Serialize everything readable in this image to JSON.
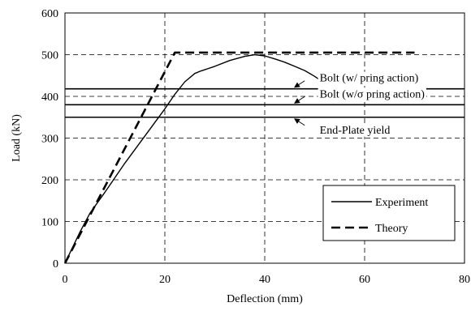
{
  "chart_data": {
    "type": "line",
    "title": "",
    "xlabel": "Deflection (mm)",
    "ylabel": "Load (kN)",
    "xlim": [
      0,
      80
    ],
    "ylim": [
      0,
      600
    ],
    "xticks": [
      "0",
      "20",
      "40",
      "60",
      "80"
    ],
    "yticks": [
      "0",
      "100",
      "200",
      "300",
      "400",
      "500",
      "600"
    ],
    "grid": true,
    "legend_position": "bottom-right",
    "series": [
      {
        "name": "Experiment",
        "style": "solid",
        "color": "#000000",
        "x": [
          0,
          1,
          3,
          5,
          8,
          12,
          16,
          20,
          22,
          24,
          26,
          27,
          30,
          33,
          36,
          38,
          40,
          42,
          44,
          46,
          48,
          50,
          51
        ],
        "y": [
          0,
          25,
          75,
          120,
          170,
          240,
          305,
          370,
          405,
          435,
          455,
          460,
          472,
          486,
          496,
          500,
          497,
          490,
          482,
          472,
          462,
          448,
          440
        ]
      },
      {
        "name": "Theory",
        "style": "dashed",
        "color": "#000000",
        "x": [
          0,
          22,
          70
        ],
        "y": [
          0,
          505,
          505
        ]
      }
    ],
    "reference_lines": [
      {
        "label": "Bolt (w/ pring action)",
        "y": 418
      },
      {
        "label": "Bolt (w/σ pring action)",
        "y": 380
      },
      {
        "label": "End-Plate yield",
        "y": 350
      }
    ]
  }
}
